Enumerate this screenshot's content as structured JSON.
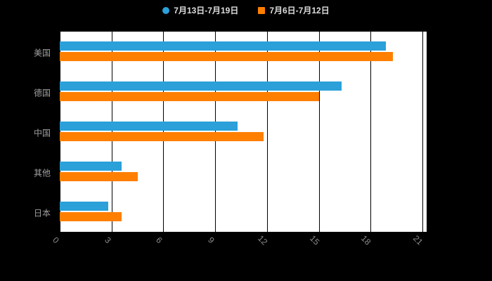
{
  "legend": [
    {
      "label": "7月13日-7月19日",
      "color": "#2ba0d9",
      "shape": "circle"
    },
    {
      "label": "7月6日-7月12日",
      "color": "#ff7f00",
      "shape": "square"
    }
  ],
  "chart_data": {
    "type": "bar",
    "orientation": "horizontal",
    "title": "",
    "xlabel": "",
    "ylabel": "",
    "categories": [
      "美国",
      "德国",
      "中国",
      "其他",
      "日本"
    ],
    "series": [
      {
        "name": "7月13日-7月19日",
        "color": "#2ba0d9",
        "values": [
          18.9,
          16.3,
          10.3,
          3.6,
          2.8
        ]
      },
      {
        "name": "7月6日-7月12日",
        "color": "#ff7f00",
        "values": [
          19.3,
          15.0,
          11.8,
          4.5,
          3.6
        ]
      }
    ],
    "xlim": [
      0,
      21
    ],
    "xticks": [
      0,
      3,
      6,
      9,
      12,
      15,
      18,
      21
    ],
    "grid": true,
    "legend_position": "top"
  },
  "colors": {
    "background": "#000000",
    "plot_background": "#ffffff",
    "grid_line": "#000000",
    "axis_tick_label": "#8c8c8c",
    "category_label": "#a0a0a0",
    "legend_text": "#dddddd"
  }
}
